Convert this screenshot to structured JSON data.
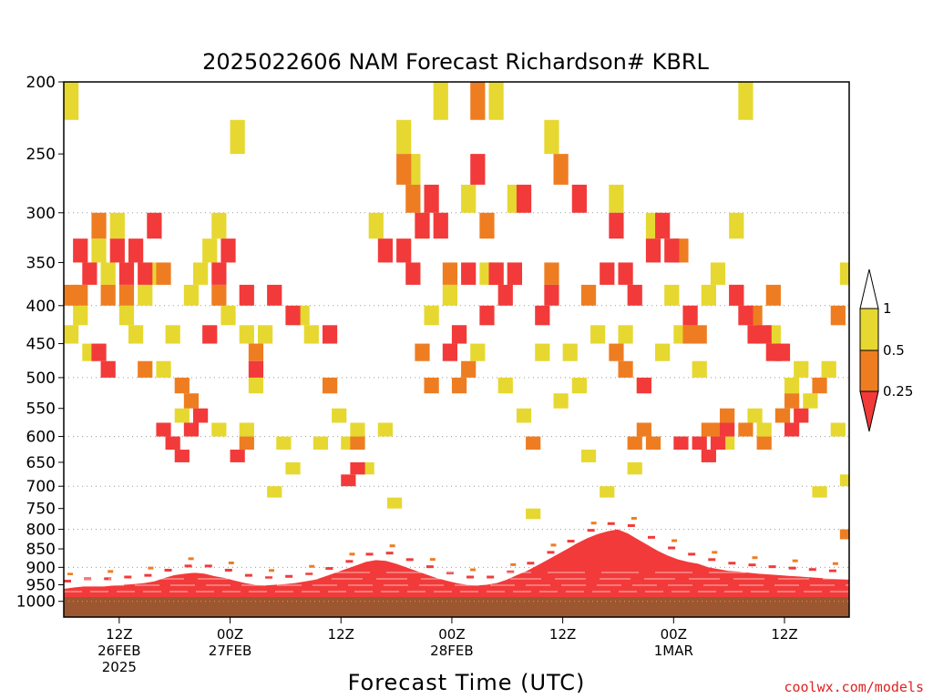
{
  "chart_data": {
    "type": "heatmap",
    "title": "2025022606 NAM Forecast Richardson# KBRL",
    "xlabel": "Forecast Time (UTC)",
    "ylabel": "",
    "y_scale": "log",
    "y_reversed": true,
    "y_range": [
      200,
      1050
    ],
    "y_ticks": [
      200,
      250,
      300,
      350,
      400,
      450,
      500,
      550,
      600,
      650,
      700,
      750,
      800,
      850,
      900,
      950,
      1000
    ],
    "y_gridlines": [
      300,
      400,
      500,
      600,
      700,
      800,
      900,
      1000
    ],
    "x_range": [
      "2025-02-26 06Z",
      "2025-03-01 19Z"
    ],
    "x_ticks": [
      {
        "time": "2025-02-26 12Z",
        "label": "12Z",
        "sub": "26FEB",
        "sub2": "2025"
      },
      {
        "time": "2025-02-27 00Z",
        "label": "00Z",
        "sub": "27FEB",
        "sub2": ""
      },
      {
        "time": "2025-02-27 12Z",
        "label": "12Z",
        "sub": "",
        "sub2": ""
      },
      {
        "time": "2025-02-28 00Z",
        "label": "00Z",
        "sub": "28FEB",
        "sub2": ""
      },
      {
        "time": "2025-02-28 12Z",
        "label": "12Z",
        "sub": "",
        "sub2": ""
      },
      {
        "time": "2025-03-01 00Z",
        "label": "00Z",
        "sub": "1MAR",
        "sub2": ""
      },
      {
        "time": "2025-03-01 12Z",
        "label": "12Z",
        "sub": "",
        "sub2": ""
      }
    ],
    "grid": true,
    "legend_position": "right",
    "legend_levels": [
      {
        "label": "1",
        "color": "#ffffff"
      },
      {
        "label": "0.5",
        "color": "#e6d830"
      },
      {
        "label": "0.25",
        "color": "#ee7d22"
      },
      {
        "label": "",
        "color": "#f23a3a"
      }
    ],
    "ground_color": "#9c5630",
    "credit": "coolwx.com/models",
    "colors": {
      "lt_1": "#e6d830",
      "lt_05": "#ee7d22",
      "lt_025": "#f23a3a"
    },
    "cell_grid": {
      "x_step_hours": 1,
      "levels": "25 hPa layers"
    },
    "cells": {
      "lt_1": [
        [
          "2025-02-26 06Z",
          200
        ],
        [
          "2025-02-26 06Z",
          425
        ],
        [
          "2025-02-26 07Z",
          400
        ],
        [
          "2025-02-26 08Z",
          450
        ],
        [
          "2025-02-26 09Z",
          325
        ],
        [
          "2025-02-26 10Z",
          350
        ],
        [
          "2025-02-26 11Z",
          300
        ],
        [
          "2025-02-26 12Z",
          400
        ],
        [
          "2025-02-26 13Z",
          425
        ],
        [
          "2025-02-26 14Z",
          375
        ],
        [
          "2025-02-26 15Z",
          350
        ],
        [
          "2025-02-26 16Z",
          475
        ],
        [
          "2025-02-26 17Z",
          425
        ],
        [
          "2025-02-26 18Z",
          550
        ],
        [
          "2025-02-26 19Z",
          375
        ],
        [
          "2025-02-26 20Z",
          350
        ],
        [
          "2025-02-26 21Z",
          325
        ],
        [
          "2025-02-26 22Z",
          300
        ],
        [
          "2025-02-26 22Z",
          575
        ],
        [
          "2025-02-26 23Z",
          400
        ],
        [
          "2025-02-27 00Z",
          225
        ],
        [
          "2025-02-27 01Z",
          425
        ],
        [
          "2025-02-27 01Z",
          575
        ],
        [
          "2025-02-27 02Z",
          500
        ],
        [
          "2025-02-27 03Z",
          425
        ],
        [
          "2025-02-27 04Z",
          700
        ],
        [
          "2025-02-27 05Z",
          600
        ],
        [
          "2025-02-27 06Z",
          650
        ],
        [
          "2025-02-27 07Z",
          400
        ],
        [
          "2025-02-27 08Z",
          425
        ],
        [
          "2025-02-27 09Z",
          600
        ],
        [
          "2025-02-27 10Z",
          500
        ],
        [
          "2025-02-27 11Z",
          550
        ],
        [
          "2025-02-27 12Z",
          600
        ],
        [
          "2025-02-27 13Z",
          575
        ],
        [
          "2025-02-27 14Z",
          650
        ],
        [
          "2025-02-27 15Z",
          300
        ],
        [
          "2025-02-27 16Z",
          575
        ],
        [
          "2025-02-27 17Z",
          725
        ],
        [
          "2025-02-27 18Z",
          175
        ],
        [
          "2025-02-27 18Z",
          225
        ],
        [
          "2025-02-27 19Z",
          250
        ],
        [
          "2025-02-27 20Z",
          300
        ],
        [
          "2025-02-27 21Z",
          400
        ],
        [
          "2025-02-27 22Z",
          200
        ],
        [
          "2025-02-27 23Z",
          375
        ],
        [
          "2025-02-28 00Z",
          425
        ],
        [
          "2025-02-28 01Z",
          275
        ],
        [
          "2025-02-28 02Z",
          450
        ],
        [
          "2025-02-28 03Z",
          350
        ],
        [
          "2025-02-28 04Z",
          200
        ],
        [
          "2025-02-28 05Z",
          500
        ],
        [
          "2025-02-28 06Z",
          275
        ],
        [
          "2025-02-28 07Z",
          550
        ],
        [
          "2025-02-28 08Z",
          750
        ],
        [
          "2025-02-28 09Z",
          450
        ],
        [
          "2025-02-28 10Z",
          225
        ],
        [
          "2025-02-28 11Z",
          525
        ],
        [
          "2025-02-28 12Z",
          450
        ],
        [
          "2025-02-28 13Z",
          500
        ],
        [
          "2025-02-28 14Z",
          625
        ],
        [
          "2025-02-28 15Z",
          425
        ],
        [
          "2025-02-28 16Z",
          700
        ],
        [
          "2025-02-28 17Z",
          275
        ],
        [
          "2025-02-28 18Z",
          425
        ],
        [
          "2025-02-28 19Z",
          650
        ],
        [
          "2025-02-28 20Z",
          500
        ],
        [
          "2025-02-28 21Z",
          300
        ],
        [
          "2025-02-28 22Z",
          450
        ],
        [
          "2025-02-28 23Z",
          375
        ],
        [
          "2025-03-01 00Z",
          425
        ],
        [
          "2025-03-01 01Z",
          400
        ],
        [
          "2025-03-01 02Z",
          475
        ],
        [
          "2025-03-01 03Z",
          375
        ],
        [
          "2025-03-01 04Z",
          350
        ],
        [
          "2025-03-01 05Z",
          600
        ],
        [
          "2025-03-01 06Z",
          300
        ],
        [
          "2025-03-01 07Z",
          200
        ],
        [
          "2025-03-01 08Z",
          550
        ],
        [
          "2025-03-01 09Z",
          575
        ],
        [
          "2025-03-01 10Z",
          425
        ],
        [
          "2025-03-01 11Z",
          550
        ],
        [
          "2025-03-01 12Z",
          500
        ],
        [
          "2025-03-01 13Z",
          475
        ],
        [
          "2025-03-01 14Z",
          525
        ],
        [
          "2025-03-01 15Z",
          700
        ],
        [
          "2025-03-01 16Z",
          475
        ],
        [
          "2025-03-01 17Z",
          575
        ],
        [
          "2025-03-01 18Z",
          350
        ],
        [
          "2025-03-01 18Z",
          675
        ]
      ],
      "lt_05": [
        [
          "2025-02-26 06Z",
          375
        ],
        [
          "2025-02-26 07Z",
          375
        ],
        [
          "2025-02-26 09Z",
          300
        ],
        [
          "2025-02-26 10Z",
          375
        ],
        [
          "2025-02-26 12Z",
          375
        ],
        [
          "2025-02-26 14Z",
          475
        ],
        [
          "2025-02-26 16Z",
          350
        ],
        [
          "2025-02-26 18Z",
          500
        ],
        [
          "2025-02-26 19Z",
          525
        ],
        [
          "2025-02-26 22Z",
          375
        ],
        [
          "2025-02-27 01Z",
          600
        ],
        [
          "2025-02-27 02Z",
          450
        ],
        [
          "2025-02-27 10Z",
          500
        ],
        [
          "2025-02-27 13Z",
          600
        ],
        [
          "2025-02-27 18Z",
          250
        ],
        [
          "2025-02-27 19Z",
          275
        ],
        [
          "2025-02-27 20Z",
          450
        ],
        [
          "2025-02-27 21Z",
          500
        ],
        [
          "2025-02-27 23Z",
          350
        ],
        [
          "2025-02-28 00Z",
          500
        ],
        [
          "2025-02-28 01Z",
          475
        ],
        [
          "2025-02-28 02Z",
          200
        ],
        [
          "2025-02-28 03Z",
          300
        ],
        [
          "2025-02-28 04Z",
          350
        ],
        [
          "2025-02-28 06Z",
          350
        ],
        [
          "2025-02-28 08Z",
          600
        ],
        [
          "2025-02-28 10Z",
          350
        ],
        [
          "2025-02-28 11Z",
          250
        ],
        [
          "2025-02-28 14Z",
          375
        ],
        [
          "2025-02-28 17Z",
          450
        ],
        [
          "2025-02-28 18Z",
          475
        ],
        [
          "2025-02-28 19Z",
          600
        ],
        [
          "2025-02-28 20Z",
          575
        ],
        [
          "2025-02-28 21Z",
          600
        ],
        [
          "2025-03-01 00Z",
          325
        ],
        [
          "2025-03-01 01Z",
          425
        ],
        [
          "2025-03-01 02Z",
          425
        ],
        [
          "2025-03-01 03Z",
          575
        ],
        [
          "2025-03-01 04Z",
          575
        ],
        [
          "2025-03-01 05Z",
          550
        ],
        [
          "2025-03-01 06Z",
          375
        ],
        [
          "2025-03-01 07Z",
          575
        ],
        [
          "2025-03-01 08Z",
          400
        ],
        [
          "2025-03-01 09Z",
          600
        ],
        [
          "2025-03-01 10Z",
          375
        ],
        [
          "2025-03-01 11Z",
          550
        ],
        [
          "2025-03-01 12Z",
          525
        ],
        [
          "2025-03-01 15Z",
          500
        ],
        [
          "2025-03-01 17Z",
          400
        ],
        [
          "2025-03-01 18Z",
          800
        ]
      ],
      "lt_025": [
        [
          "2025-02-26 07Z",
          325
        ],
        [
          "2025-02-26 08Z",
          350
        ],
        [
          "2025-02-26 09Z",
          450
        ],
        [
          "2025-02-26 10Z",
          475
        ],
        [
          "2025-02-26 11Z",
          325
        ],
        [
          "2025-02-26 12Z",
          350
        ],
        [
          "2025-02-26 13Z",
          325
        ],
        [
          "2025-02-26 14Z",
          350
        ],
        [
          "2025-02-26 15Z",
          300
        ],
        [
          "2025-02-26 16Z",
          575
        ],
        [
          "2025-02-26 17Z",
          600
        ],
        [
          "2025-02-26 18Z",
          625
        ],
        [
          "2025-02-26 19Z",
          575
        ],
        [
          "2025-02-26 20Z",
          550
        ],
        [
          "2025-02-26 21Z",
          425
        ],
        [
          "2025-02-26 22Z",
          350
        ],
        [
          "2025-02-26 23Z",
          325
        ],
        [
          "2025-02-27 00Z",
          625
        ],
        [
          "2025-02-27 01Z",
          375
        ],
        [
          "2025-02-27 02Z",
          475
        ],
        [
          "2025-02-27 04Z",
          375
        ],
        [
          "2025-02-27 06Z",
          400
        ],
        [
          "2025-02-27 10Z",
          425
        ],
        [
          "2025-02-27 12Z",
          675
        ],
        [
          "2025-02-27 13Z",
          650
        ],
        [
          "2025-02-27 16Z",
          325
        ],
        [
          "2025-02-27 18Z",
          325
        ],
        [
          "2025-02-27 19Z",
          350
        ],
        [
          "2025-02-27 20Z",
          300
        ],
        [
          "2025-02-27 21Z",
          275
        ],
        [
          "2025-02-27 22Z",
          300
        ],
        [
          "2025-02-27 23Z",
          450
        ],
        [
          "2025-02-28 00Z",
          425
        ],
        [
          "2025-02-28 01Z",
          350
        ],
        [
          "2025-02-28 02Z",
          250
        ],
        [
          "2025-02-28 03Z",
          400
        ],
        [
          "2025-02-28 04Z",
          350
        ],
        [
          "2025-02-28 05Z",
          375
        ],
        [
          "2025-02-28 06Z",
          350
        ],
        [
          "2025-02-28 07Z",
          275
        ],
        [
          "2025-02-28 09Z",
          400
        ],
        [
          "2025-02-28 10Z",
          375
        ],
        [
          "2025-02-28 13Z",
          275
        ],
        [
          "2025-02-28 16Z",
          350
        ],
        [
          "2025-02-28 17Z",
          300
        ],
        [
          "2025-02-28 18Z",
          350
        ],
        [
          "2025-02-28 19Z",
          375
        ],
        [
          "2025-02-28 20Z",
          500
        ],
        [
          "2025-02-28 21Z",
          325
        ],
        [
          "2025-02-28 22Z",
          300
        ],
        [
          "2025-02-28 23Z",
          325
        ],
        [
          "2025-03-01 00Z",
          600
        ],
        [
          "2025-03-01 01Z",
          400
        ],
        [
          "2025-03-01 02Z",
          600
        ],
        [
          "2025-03-01 03Z",
          625
        ],
        [
          "2025-03-01 04Z",
          600
        ],
        [
          "2025-03-01 05Z",
          575
        ],
        [
          "2025-03-01 06Z",
          375
        ],
        [
          "2025-03-01 07Z",
          400
        ],
        [
          "2025-03-01 08Z",
          425
        ],
        [
          "2025-03-01 09Z",
          425
        ],
        [
          "2025-03-01 10Z",
          450
        ],
        [
          "2025-03-01 11Z",
          450
        ],
        [
          "2025-03-01 12Z",
          575
        ],
        [
          "2025-03-01 13Z",
          550
        ]
      ]
    },
    "pbl_red_top_hpa": [
      962,
      958,
      955,
      955,
      955,
      952,
      950,
      948,
      945,
      940,
      930,
      922,
      918,
      915,
      918,
      925,
      930,
      938,
      945,
      950,
      952,
      950,
      948,
      945,
      940,
      935,
      925,
      915,
      905,
      895,
      885,
      880,
      882,
      890,
      900,
      910,
      920,
      930,
      938,
      945,
      950,
      952,
      950,
      945,
      935,
      922,
      910,
      895,
      880,
      865,
      850,
      835,
      822,
      812,
      805,
      800,
      810,
      825,
      840,
      855,
      868,
      878,
      885,
      890,
      900,
      905,
      910,
      912,
      915,
      918,
      920,
      922,
      924,
      926,
      928,
      930,
      932,
      934,
      935
    ]
  }
}
